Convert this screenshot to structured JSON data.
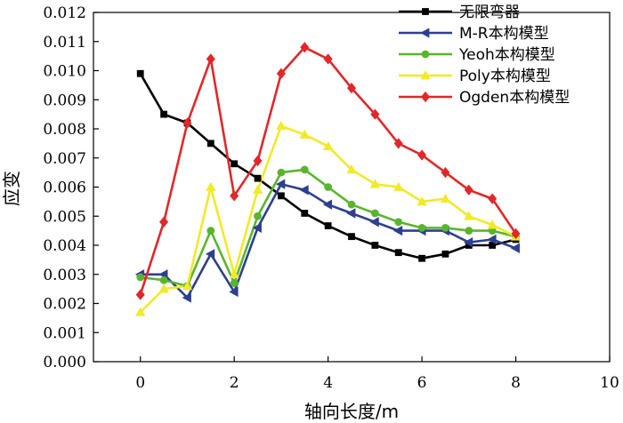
{
  "chart_data": {
    "type": "line",
    "title": "",
    "xlabel": "轴向长度/m",
    "ylabel": "应变",
    "xlim": [
      -1.0,
      10.0
    ],
    "ylim": [
      0.0,
      0.012
    ],
    "xticks": [
      0,
      2,
      4,
      6,
      8,
      10
    ],
    "xtick_labels": [
      "0",
      "2",
      "4",
      "6",
      "8",
      "10"
    ],
    "yticks": [
      0.0,
      0.001,
      0.002,
      0.003,
      0.004,
      0.005,
      0.006,
      0.007,
      0.008,
      0.009,
      0.01,
      0.011,
      0.012
    ],
    "ytick_labels": [
      "0.000",
      "0.001",
      "0.002",
      "0.003",
      "0.004",
      "0.005",
      "0.006",
      "0.007",
      "0.008",
      "0.009",
      "0.010",
      "0.011",
      "0.012"
    ],
    "grid": false,
    "legend_position": "top-right",
    "series": [
      {
        "name": "无限弯器",
        "color": "#000000",
        "marker": "square",
        "x": [
          0,
          0.5,
          1.0,
          1.5,
          2.0,
          2.5,
          3.0,
          3.5,
          4.0,
          4.5,
          5.0,
          5.5,
          6.0,
          6.5,
          7.0,
          7.5,
          8.0
        ],
        "y": [
          0.0099,
          0.0085,
          0.0082,
          0.0075,
          0.0068,
          0.0063,
          0.0057,
          0.0051,
          0.00467,
          0.0043,
          0.004,
          0.00375,
          0.00355,
          0.0037,
          0.004,
          0.004,
          0.0042
        ]
      },
      {
        "name": "M-R本构模型",
        "color": "#2e3f8f",
        "marker": "triangle-left",
        "x": [
          0,
          0.5,
          1.0,
          1.5,
          2.0,
          2.5,
          3.0,
          3.5,
          4.0,
          4.5,
          5.0,
          5.5,
          6.0,
          6.5,
          7.0,
          7.5,
          8.0
        ],
        "y": [
          0.003,
          0.003,
          0.0022,
          0.0037,
          0.0024,
          0.0046,
          0.0061,
          0.0059,
          0.0054,
          0.0051,
          0.0048,
          0.0045,
          0.0045,
          0.0045,
          0.0041,
          0.0042,
          0.0039
        ]
      },
      {
        "name": "Yeoh本构模型",
        "color": "#5ab52e",
        "marker": "circle",
        "x": [
          0,
          0.5,
          1.0,
          1.5,
          2.0,
          2.5,
          3.0,
          3.5,
          4.0,
          4.5,
          5.0,
          5.5,
          6.0,
          6.5,
          7.0,
          7.5,
          8.0
        ],
        "y": [
          0.0029,
          0.0028,
          0.0026,
          0.0045,
          0.0027,
          0.005,
          0.0065,
          0.0066,
          0.006,
          0.0054,
          0.0051,
          0.0048,
          0.0046,
          0.0046,
          0.0045,
          0.0045,
          0.0043
        ]
      },
      {
        "name": "Poly本构模型",
        "color": "#f0ea2a",
        "marker": "triangle-up",
        "x": [
          0,
          0.5,
          1.0,
          1.5,
          2.0,
          2.5,
          3.0,
          3.5,
          4.0,
          4.5,
          5.0,
          5.5,
          6.0,
          6.5,
          7.0,
          7.5,
          8.0
        ],
        "y": [
          0.0017,
          0.0025,
          0.0026,
          0.006,
          0.003,
          0.0059,
          0.0081,
          0.0078,
          0.0074,
          0.0066,
          0.0061,
          0.006,
          0.0055,
          0.0056,
          0.005,
          0.0047,
          0.0043
        ]
      },
      {
        "name": "Ogden本构模型",
        "color": "#e0282a",
        "marker": "diamond",
        "x": [
          0,
          0.5,
          1.0,
          1.5,
          2.0,
          2.5,
          3.0,
          3.5,
          4.0,
          4.5,
          5.0,
          5.5,
          6.0,
          6.5,
          7.0,
          7.5,
          8.0
        ],
        "y": [
          0.0023,
          0.0048,
          0.0082,
          0.0104,
          0.0057,
          0.0069,
          0.0099,
          0.0108,
          0.0104,
          0.0094,
          0.0085,
          0.0075,
          0.0071,
          0.0065,
          0.0059,
          0.0056,
          0.0044
        ]
      }
    ]
  }
}
